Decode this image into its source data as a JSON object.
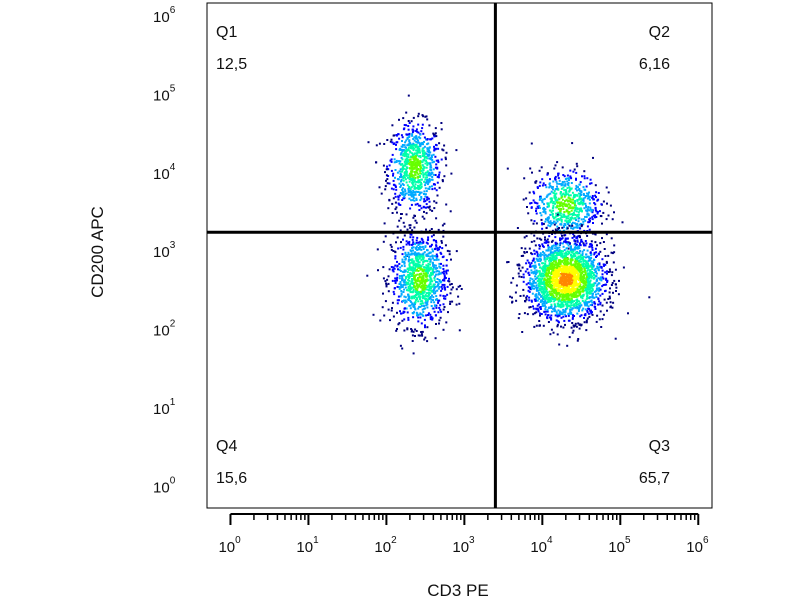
{
  "chart_data": {
    "type": "scatter",
    "title": "",
    "xlabel": "CD3 PE",
    "ylabel": "CD200 APC",
    "x_scale": "log",
    "y_scale": "log",
    "xlim": [
      0.5,
      1500000
    ],
    "ylim": [
      0.55,
      1500000
    ],
    "x_ticks": [
      1,
      10,
      100,
      1000,
      10000,
      100000,
      1000000
    ],
    "y_ticks": [
      1,
      10,
      100,
      1000,
      10000,
      100000,
      1000000
    ],
    "gates": {
      "x": 2500,
      "y": 1800
    },
    "quadrants": [
      {
        "label": "Q1",
        "value": "12,5",
        "corner": "top-left"
      },
      {
        "label": "Q2",
        "value": "6,16",
        "corner": "top-right"
      },
      {
        "label": "Q3",
        "value": "65,7",
        "corner": "bottom-right"
      },
      {
        "label": "Q4",
        "value": "15,6",
        "corner": "bottom-left"
      }
    ],
    "populations": [
      {
        "quadrant": "Q1",
        "x_center": 230,
        "y_center": 12000,
        "x_spread_log": 0.17,
        "y_spread_log": 0.28,
        "density": "medium-high"
      },
      {
        "quadrant": "Q4",
        "x_center": 270,
        "y_center": 450,
        "x_spread_log": 0.18,
        "y_spread_log": 0.3,
        "density": "high"
      },
      {
        "quadrant": "Q2",
        "x_center": 20000,
        "y_center": 4000,
        "x_spread_log": 0.22,
        "y_spread_log": 0.22,
        "density": "medium"
      },
      {
        "quadrant": "Q3",
        "x_center": 20000,
        "y_center": 450,
        "x_spread_log": 0.25,
        "y_spread_log": 0.25,
        "density": "very-high"
      }
    ],
    "color_scale": [
      "#00007f",
      "#0000ff",
      "#00aaff",
      "#00ffaa",
      "#66ff00",
      "#ffff00",
      "#ff8800",
      "#ff0000"
    ]
  }
}
